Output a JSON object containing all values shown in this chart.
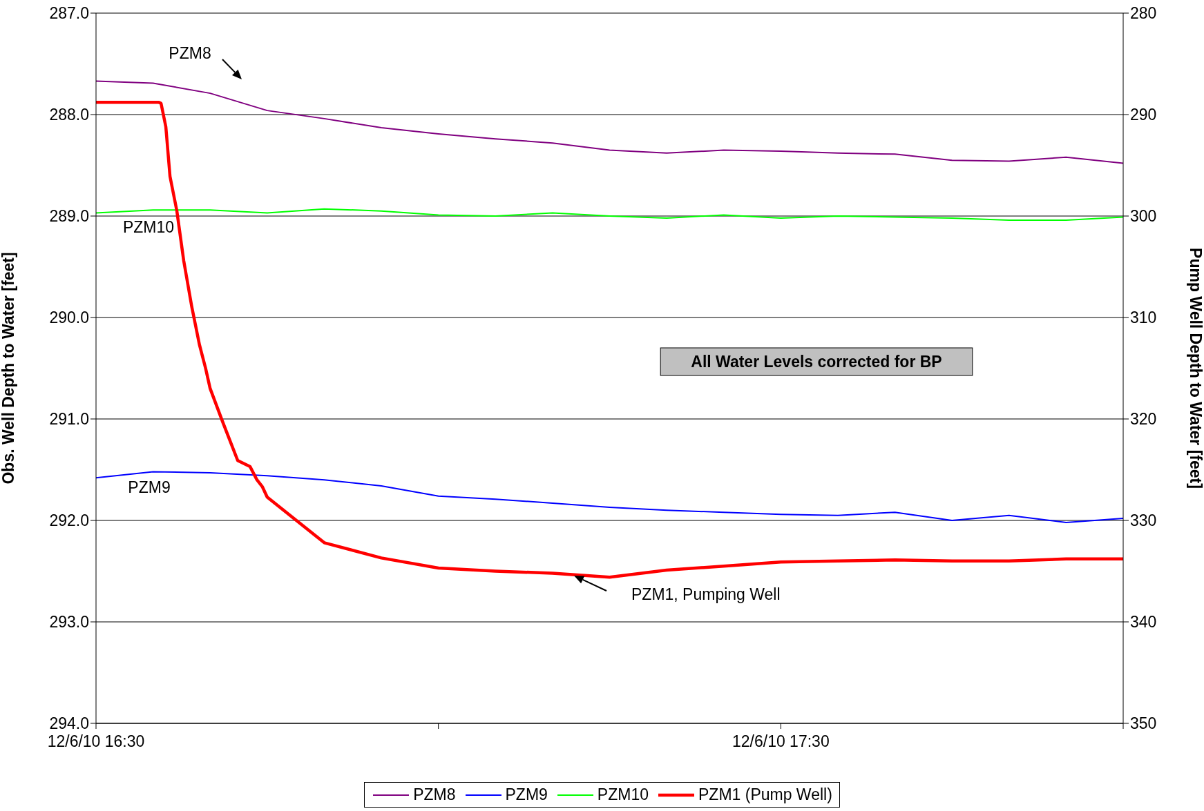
{
  "chart_data": {
    "type": "line",
    "xlabel": null,
    "ylabel": "Obs. Well Depth to Water [feet]",
    "y2label": "Pump Well Depth to Water [feet]",
    "x": [
      "--12-06T16:30",
      "--12-06T16:35",
      "--12-06T16:40",
      "--12-06T16:45",
      "--12-06T16:50",
      "--12-06T16:55",
      "--12-06T17:00",
      "--12-06T17:05",
      "--12-06T17:10",
      "--12-06T17:15",
      "--12-06T17:20",
      "--12-06T17:25",
      "--12-06T17:30",
      "--12-06T17:35",
      "--12-06T17:40",
      "--12-06T17:45",
      "--12-06T17:50",
      "--12-06T17:55",
      "--12-06T18:00"
    ],
    "series": [
      {
        "name": "PZM8",
        "color": "#800080",
        "values": [
          287.67,
          287.69,
          287.79,
          287.96,
          288.04,
          288.13,
          288.19,
          288.24,
          288.28,
          288.35,
          288.38,
          288.35,
          288.36,
          288.38,
          288.39,
          288.45,
          288.46,
          288.42,
          288.48
        ]
      },
      {
        "name": "PZM9",
        "color": "#0000ff",
        "values": [
          291.58,
          291.52,
          291.53,
          291.56,
          291.6,
          291.66,
          291.76,
          291.79,
          291.83,
          291.87,
          291.9,
          291.92,
          291.94,
          291.95,
          291.92,
          292.0,
          291.95,
          292.02,
          291.98
        ]
      },
      {
        "name": "PZM10",
        "color": "#00ff00",
        "values": [
          288.97,
          288.94,
          288.94,
          288.97,
          288.93,
          288.95,
          288.99,
          289.0,
          288.97,
          289.0,
          289.02,
          288.99,
          289.02,
          289.0,
          289.01,
          289.02,
          289.04,
          289.04,
          289.01
        ]
      },
      {
        "name": "PZM1 (Pump Well)",
        "color": "#ff0000",
        "axis": "y2",
        "x": [
          "--12-06T16:30",
          "--12-06T16:35:02",
          "--12-06T16:35:31",
          "--12-06T16:35:42",
          "--12-06T16:36:07",
          "--12-06T16:36:29",
          "--12-06T16:37:05",
          "--12-06T16:37:41",
          "--12-06T16:38:24",
          "--12-06T16:39:04",
          "--12-06T16:39:36",
          "--12-06T16:40",
          "--12-06T16:41:06",
          "--12-06T16:42:25",
          "--12-06T16:43:30",
          "--12-06T16:44:06",
          "--12-06T16:44:35",
          "--12-06T16:45",
          "--12-06T16:50",
          "--12-06T16:55",
          "--12-06T17:00",
          "--12-06T17:05",
          "--12-06T17:10",
          "--12-06T17:15",
          "--12-06T17:20",
          "--12-06T17:25",
          "--12-06T17:30",
          "--12-06T17:35",
          "--12-06T17:40",
          "--12-06T17:45",
          "--12-06T17:50",
          "--12-06T17:55",
          "--12-06T18:00"
        ],
        "values": [
          288.8,
          288.8,
          288.8,
          288.9,
          291.2,
          296.1,
          299.5,
          304.4,
          309.0,
          312.7,
          315.0,
          317.0,
          320.3,
          324.1,
          324.7,
          326.0,
          326.7,
          327.7,
          332.2,
          333.7,
          334.7,
          335.0,
          335.2,
          335.6,
          334.9,
          334.5,
          334.1,
          334.0,
          333.9,
          334.0,
          334.0,
          333.8,
          333.8
        ]
      }
    ],
    "xlim": [
      "--12-06T16:30",
      "--12-06T18:00"
    ],
    "xticks": [
      {
        "value": "--12-06T16:30",
        "label": "12/6/10 16:30"
      },
      {
        "value": "--12-06T17:00",
        "label": null
      },
      {
        "value": "--12-06T17:30",
        "label": "12/6/10 17:30"
      },
      {
        "value": "--12-06T18:00",
        "label": null
      }
    ],
    "ylim": [
      294,
      287
    ],
    "yticks": [
      {
        "value": 287,
        "label": "287.0"
      },
      {
        "value": 288,
        "label": "288.0"
      },
      {
        "value": 289,
        "label": "289.0"
      },
      {
        "value": 290,
        "label": "290.0"
      },
      {
        "value": 291,
        "label": "291.0"
      },
      {
        "value": 292,
        "label": "292.0"
      },
      {
        "value": 293,
        "label": "293.0"
      },
      {
        "value": 294,
        "label": "294.0"
      }
    ],
    "y2lim": [
      350,
      280
    ],
    "y2ticks": [
      280,
      290,
      300,
      310,
      320,
      330,
      340,
      350
    ],
    "grid": "y",
    "legend": "bottom",
    "marker": "none",
    "line_style": "solid",
    "annotations": [
      "PZM8",
      "PZM10",
      "PZM9",
      "PZM1, Pumping Well",
      "All Water Levels corrected for BP"
    ]
  }
}
